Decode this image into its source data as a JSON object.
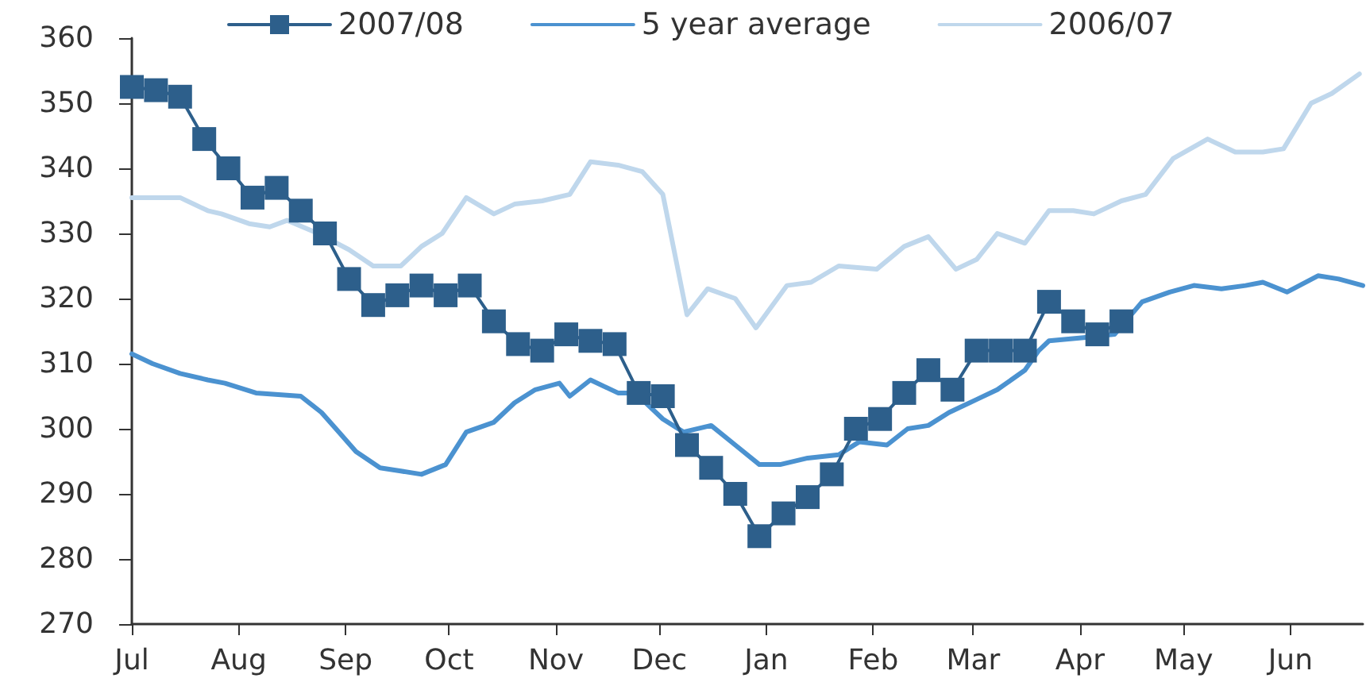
{
  "chart_data": {
    "type": "line",
    "legend": "top",
    "grid": false,
    "xlim": [
      "2007-07-01",
      "2008-06-22"
    ],
    "xticks": [
      {
        "value": "2007-07-01",
        "label": "Jul"
      },
      {
        "value": "2007-08-01",
        "label": "Aug"
      },
      {
        "value": "2007-09-01",
        "label": "Sep"
      },
      {
        "value": "2007-10-01",
        "label": "Oct"
      },
      {
        "value": "2007-11-01",
        "label": "Nov"
      },
      {
        "value": "2007-12-01",
        "label": "Dec"
      },
      {
        "value": "2008-01-01",
        "label": "Jan"
      },
      {
        "value": "2008-02-01",
        "label": "Feb"
      },
      {
        "value": "2008-03-01",
        "label": "Mar"
      },
      {
        "value": "2008-04-01",
        "label": "Apr"
      },
      {
        "value": "2008-05-01",
        "label": "May"
      },
      {
        "value": "2008-06-01",
        "label": "Jun"
      }
    ],
    "ylim": [
      270,
      360
    ],
    "yticks": [
      270,
      280,
      290,
      300,
      310,
      320,
      330,
      340,
      350,
      360
    ],
    "series": [
      {
        "name": "2007/08",
        "color": "#2d5f8b",
        "marker": "square",
        "x": [
          "2007-07-01",
          "2007-07-08",
          "2007-07-15",
          "2007-07-22",
          "2007-07-29",
          "2007-08-05",
          "2007-08-12",
          "2007-08-19",
          "2007-08-26",
          "2007-09-02",
          "2007-09-09",
          "2007-09-16",
          "2007-09-23",
          "2007-09-30",
          "2007-10-07",
          "2007-10-14",
          "2007-10-21",
          "2007-10-28",
          "2007-11-04",
          "2007-11-11",
          "2007-11-18",
          "2007-11-25",
          "2007-12-02",
          "2007-12-09",
          "2007-12-16",
          "2007-12-23",
          "2007-12-30",
          "2008-01-06",
          "2008-01-13",
          "2008-01-20",
          "2008-01-27",
          "2008-02-03",
          "2008-02-10",
          "2008-02-17",
          "2008-02-24",
          "2008-03-02",
          "2008-03-09",
          "2008-03-16",
          "2008-03-23",
          "2008-03-30",
          "2008-04-06",
          "2008-04-13"
        ],
        "values": [
          352.5,
          352,
          351,
          344.5,
          340,
          335.5,
          337,
          333.5,
          330,
          323,
          319,
          320.5,
          322,
          320.5,
          322,
          316.5,
          313,
          312,
          314.5,
          313.5,
          313,
          305.5,
          305,
          297.5,
          294,
          290,
          283.5,
          287,
          289.5,
          293,
          300,
          301.5,
          305.5,
          309,
          306,
          312,
          312,
          312,
          319.5,
          316.5,
          314.5,
          316.5
        ]
      },
      {
        "name": "5 year average",
        "color": "#4b92d0",
        "marker": "none",
        "x": [
          "2007-07-01",
          "2007-07-07",
          "2007-07-15",
          "2007-07-23",
          "2007-07-28",
          "2007-08-06",
          "2007-08-19",
          "2007-08-25",
          "2007-08-30",
          "2007-09-04",
          "2007-09-11",
          "2007-09-17",
          "2007-09-23",
          "2007-09-30",
          "2007-10-06",
          "2007-10-14",
          "2007-10-20",
          "2007-10-26",
          "2007-11-02",
          "2007-11-05",
          "2007-11-11",
          "2007-11-19",
          "2007-11-24",
          "2007-12-02",
          "2007-12-08",
          "2007-12-16",
          "2007-12-23",
          "2007-12-30",
          "2008-01-05",
          "2008-01-13",
          "2008-01-22",
          "2008-01-28",
          "2008-02-05",
          "2008-02-11",
          "2008-02-17",
          "2008-02-23",
          "2008-03-02",
          "2008-03-08",
          "2008-03-16",
          "2008-03-20",
          "2008-03-23",
          "2008-04-02",
          "2008-04-11",
          "2008-04-19",
          "2008-04-27",
          "2008-05-04",
          "2008-05-12",
          "2008-05-19",
          "2008-05-24",
          "2008-05-31",
          "2008-06-09",
          "2008-06-15",
          "2008-06-22"
        ],
        "values": [
          311.5,
          310,
          308.5,
          307.5,
          307,
          305.5,
          305,
          302.5,
          299.5,
          296.5,
          294,
          293.5,
          293,
          294.5,
          299.5,
          301,
          304,
          306,
          307,
          305,
          307.5,
          305.5,
          305.5,
          301.5,
          299.5,
          300.5,
          297.5,
          294.5,
          294.5,
          295.5,
          296,
          298,
          297.5,
          300,
          300.5,
          302.5,
          304.5,
          306,
          309,
          312,
          313.5,
          314,
          314.5,
          319.5,
          321,
          322,
          321.5,
          322,
          322.5,
          321,
          323.5,
          323,
          322
        ]
      },
      {
        "name": "2006/07",
        "color": "#bfd7ec",
        "marker": "none",
        "x": [
          "2007-07-01",
          "2007-07-15",
          "2007-07-23",
          "2007-07-27",
          "2007-08-04",
          "2007-08-10",
          "2007-08-15",
          "2007-08-24",
          "2007-09-02",
          "2007-09-09",
          "2007-09-17",
          "2007-09-23",
          "2007-09-29",
          "2007-10-06",
          "2007-10-14",
          "2007-10-20",
          "2007-10-28",
          "2007-11-05",
          "2007-11-11",
          "2007-11-19",
          "2007-11-26",
          "2007-12-02",
          "2007-12-09",
          "2007-12-15",
          "2007-12-23",
          "2007-12-29",
          "2008-01-07",
          "2008-01-14",
          "2008-01-22",
          "2008-02-02",
          "2008-02-10",
          "2008-02-17",
          "2008-02-25",
          "2008-03-02",
          "2008-03-08",
          "2008-03-16",
          "2008-03-23",
          "2008-03-30",
          "2008-04-05",
          "2008-04-13",
          "2008-04-20",
          "2008-04-28",
          "2008-05-08",
          "2008-05-16",
          "2008-05-24",
          "2008-05-30",
          "2008-06-07",
          "2008-06-13",
          "2008-06-21"
        ],
        "values": [
          335.5,
          335.5,
          333.5,
          333,
          331.5,
          331,
          332,
          330,
          327.5,
          325,
          325,
          328,
          330,
          335.5,
          333,
          334.5,
          335,
          336,
          341,
          340.5,
          339.5,
          336,
          317.5,
          321.5,
          320,
          315.5,
          322,
          322.5,
          325,
          324.5,
          328,
          329.5,
          324.5,
          326,
          330,
          328.5,
          333.5,
          333.5,
          333,
          335,
          336,
          341.5,
          344.5,
          342.5,
          342.5,
          343,
          350,
          351.5,
          354.5
        ]
      }
    ]
  }
}
